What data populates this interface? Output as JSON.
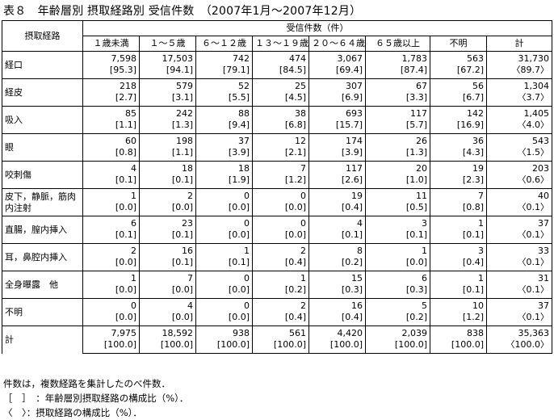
{
  "title": "表８　年齢層別 摂取経路別 受信件数　（2007年1月～2007年12月）",
  "table": {
    "corner": "摂取経路",
    "group_header": "受信件数（件）",
    "columns": [
      "１歳未満",
      "１～５歳",
      "６～１２歳",
      "１３～１９歳",
      "２０～６４歳",
      "６５歳以上",
      "不明",
      "計"
    ],
    "rows": [
      {
        "route": "経口",
        "counts": [
          "7,598",
          "17,503",
          "742",
          "474",
          "3,067",
          "1,783",
          "563",
          "31,730"
        ],
        "ratios": [
          "[95.3]",
          "[94.1]",
          "[79.1]",
          "[84.5]",
          "[69.4]",
          "[87.4]",
          "[67.2]",
          "〈89.7〉"
        ]
      },
      {
        "route": "経皮",
        "counts": [
          "218",
          "579",
          "52",
          "25",
          "307",
          "67",
          "56",
          "1,304"
        ],
        "ratios": [
          "[2.7]",
          "[3.1]",
          "[5.5]",
          "[4.5]",
          "[6.9]",
          "[3.3]",
          "[6.7]",
          "〈3.7〉"
        ]
      },
      {
        "route": "吸入",
        "counts": [
          "85",
          "242",
          "88",
          "38",
          "693",
          "117",
          "142",
          "1,405"
        ],
        "ratios": [
          "[1.1]",
          "[1.3]",
          "[9.4]",
          "[6.8]",
          "[15.7]",
          "[5.7]",
          "[16.9]",
          "〈4.0〉"
        ]
      },
      {
        "route": "眼",
        "counts": [
          "60",
          "198",
          "37",
          "12",
          "174",
          "26",
          "36",
          "543"
        ],
        "ratios": [
          "[0.8]",
          "[1.1]",
          "[3.9]",
          "[2.1]",
          "[3.9]",
          "[1.3]",
          "[4.3]",
          "〈1.5〉"
        ]
      },
      {
        "route": "咬刺傷",
        "counts": [
          "4",
          "18",
          "18",
          "7",
          "117",
          "20",
          "19",
          "203"
        ],
        "ratios": [
          "[0.1]",
          "[0.1]",
          "[1.9]",
          "[1.2]",
          "[2.6]",
          "[1.0]",
          "[2.3]",
          "〈0.6〉"
        ]
      },
      {
        "route": "皮下，静脈，筋肉内注射",
        "counts": [
          "1",
          "2",
          "0",
          "0",
          "19",
          "11",
          "7",
          "40"
        ],
        "ratios": [
          "[0.0]",
          "[0.0]",
          "[0.0]",
          "[0.0]",
          "[0.4]",
          "[0.5]",
          "[0.8]",
          "〈0.1〉"
        ]
      },
      {
        "route": "直腸，膣内挿入",
        "counts": [
          "6",
          "23",
          "0",
          "0",
          "4",
          "3",
          "1",
          "37"
        ],
        "ratios": [
          "[0.1]",
          "[0.1]",
          "[0.0]",
          "[0.0]",
          "[0.1]",
          "[0.1]",
          "[0.1]",
          "〈0.1〉"
        ]
      },
      {
        "route": "耳，鼻腔内挿入",
        "counts": [
          "2",
          "16",
          "1",
          "2",
          "8",
          "1",
          "3",
          "33"
        ],
        "ratios": [
          "[0.0]",
          "[0.1]",
          "[0.1]",
          "[0.4]",
          "[0.2]",
          "[0.0]",
          "[0.4]",
          "〈0.1〉"
        ]
      },
      {
        "route": "全身曝露　他",
        "counts": [
          "1",
          "7",
          "0",
          "1",
          "15",
          "6",
          "1",
          "31"
        ],
        "ratios": [
          "[0.0]",
          "[0.0]",
          "[0.0]",
          "[0.2]",
          "[0.3]",
          "[0.3]",
          "[0.1]",
          "〈0.1〉"
        ]
      },
      {
        "route": "不明",
        "counts": [
          "0",
          "4",
          "0",
          "2",
          "16",
          "5",
          "10",
          "37"
        ],
        "ratios": [
          "[0.0]",
          "[0.0]",
          "[0.0]",
          "[0.4]",
          "[0.4]",
          "[0.2]",
          "[1.2]",
          "〈0.1〉"
        ]
      },
      {
        "route": "計",
        "counts": [
          "7,975",
          "18,592",
          "938",
          "561",
          "4,420",
          "2,039",
          "838",
          "35,363"
        ],
        "ratios": [
          "[100.0]",
          "[100.0]",
          "[100.0]",
          "[100.0]",
          "[100.0]",
          "[100.0]",
          "[100.0]",
          "〈100.0〉"
        ]
      }
    ]
  },
  "notes": [
    "件数は，複数経路を集計したのべ件数．",
    "［　］　：年齢層別摂取経路の構成比（%）．",
    "〈　〉：摂取経路の構成比（%）．"
  ]
}
